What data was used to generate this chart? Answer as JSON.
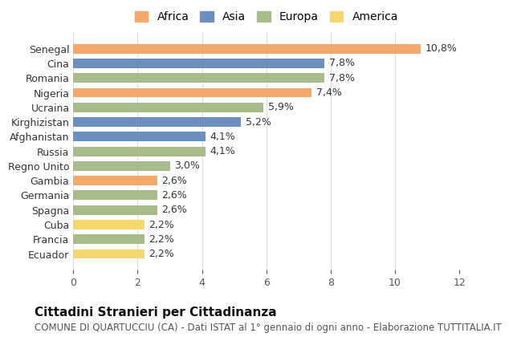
{
  "categories": [
    "Ecuador",
    "Francia",
    "Cuba",
    "Spagna",
    "Germania",
    "Gambia",
    "Regno Unito",
    "Russia",
    "Afghanistan",
    "Kirghizistan",
    "Ucraina",
    "Nigeria",
    "Romania",
    "Cina",
    "Senegal"
  ],
  "values": [
    2.2,
    2.2,
    2.2,
    2.6,
    2.6,
    2.6,
    3.0,
    4.1,
    4.1,
    5.2,
    5.9,
    7.4,
    7.8,
    7.8,
    10.8
  ],
  "continents": [
    "America",
    "Europa",
    "America",
    "Europa",
    "Europa",
    "Africa",
    "Europa",
    "Europa",
    "Asia",
    "Asia",
    "Europa",
    "Africa",
    "Europa",
    "Asia",
    "Africa"
  ],
  "labels": [
    "2,2%",
    "2,2%",
    "2,2%",
    "2,6%",
    "2,6%",
    "2,6%",
    "3,0%",
    "4,1%",
    "4,1%",
    "5,2%",
    "5,9%",
    "7,4%",
    "7,8%",
    "7,8%",
    "10,8%"
  ],
  "continent_colors": {
    "Africa": "#F4A96A",
    "Asia": "#6B8FBF",
    "Europa": "#A8BC8A",
    "America": "#F5D76E"
  },
  "legend_items": [
    "Africa",
    "Asia",
    "Europa",
    "America"
  ],
  "xlim": [
    0,
    12
  ],
  "xticks": [
    0,
    2,
    4,
    6,
    8,
    10,
    12
  ],
  "title": "Cittadini Stranieri per Cittadinanza",
  "subtitle": "COMUNE DI QUARTUCCIU (CA) - Dati ISTAT al 1° gennaio di ogni anno - Elaborazione TUTTITALIA.IT",
  "background_color": "#ffffff",
  "bar_height": 0.65,
  "label_fontsize": 9,
  "title_fontsize": 11,
  "subtitle_fontsize": 8.5,
  "tick_fontsize": 9,
  "legend_fontsize": 10
}
